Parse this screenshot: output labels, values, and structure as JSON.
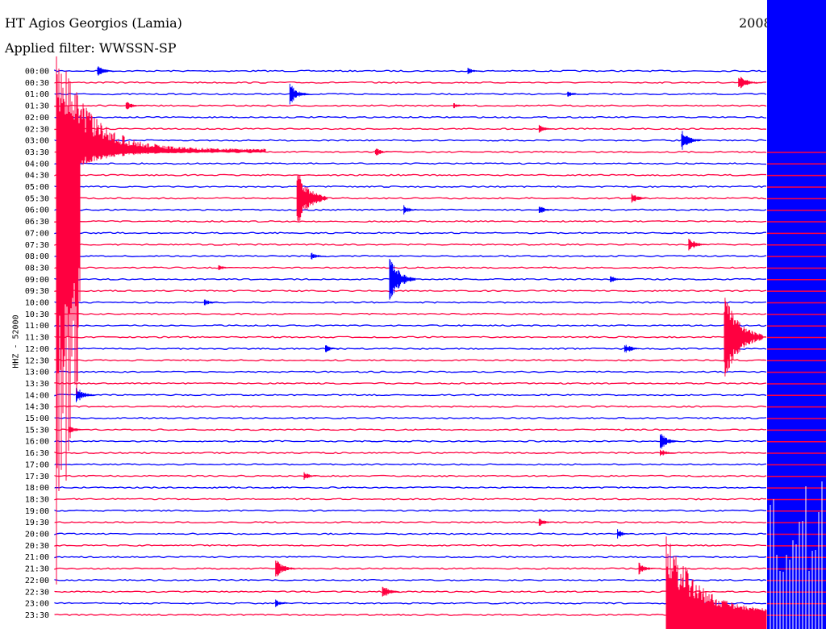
{
  "header": {
    "title": "HT Agios Georgios (Lamia)",
    "filter": "Applied filter: WWSSN-SP",
    "date": "2008"
  },
  "station_code": "HHZ - 52000",
  "colors": {
    "trace_a": "#0000ff",
    "trace_b": "#ff0040",
    "label": "#000000"
  },
  "chart_data": {
    "type": "line",
    "title": "HT Agios Georgios (Lamia)",
    "subtitle": "Applied filter: WWSSN-SP",
    "ylabel": "HHZ - 52000",
    "grid": false,
    "row_labels": [
      "00:00",
      "00:30",
      "01:00",
      "01:30",
      "02:00",
      "02:30",
      "03:00",
      "03:30",
      "04:00",
      "04:30",
      "05:00",
      "05:30",
      "06:00",
      "06:30",
      "07:00",
      "07:30",
      "08:00",
      "08:30",
      "09:00",
      "09:30",
      "10:00",
      "10:30",
      "11:00",
      "11:30",
      "12:00",
      "12:30",
      "13:00",
      "13:30",
      "14:00",
      "14:30",
      "15:00",
      "15:30",
      "16:00",
      "16:30",
      "17:00",
      "17:30",
      "18:00",
      "18:30",
      "19:00",
      "19:30",
      "20:00",
      "20:30",
      "21:00",
      "21:30",
      "22:00",
      "22:30",
      "23:00",
      "23:30"
    ],
    "events": [
      {
        "row": 0,
        "t": 0.06,
        "amp": 8,
        "color": "a"
      },
      {
        "row": 0,
        "t": 0.58,
        "amp": 5,
        "color": "a"
      },
      {
        "row": 1,
        "t": 0.96,
        "amp": 12,
        "color": "b"
      },
      {
        "row": 2,
        "t": 0.33,
        "amp": 14,
        "color": "a"
      },
      {
        "row": 2,
        "t": 0.72,
        "amp": 4,
        "color": "a"
      },
      {
        "row": 3,
        "t": 0.1,
        "amp": 6,
        "color": "b"
      },
      {
        "row": 3,
        "t": 0.56,
        "amp": 4,
        "color": "b"
      },
      {
        "row": 5,
        "t": 0.68,
        "amp": 6,
        "color": "b"
      },
      {
        "row": 6,
        "t": 0.88,
        "amp": 14,
        "color": "a"
      },
      {
        "row": 7,
        "t": 0.45,
        "amp": 6,
        "color": "b"
      },
      {
        "row": 11,
        "t": 0.34,
        "amp": 40,
        "color": "b"
      },
      {
        "row": 11,
        "t": 0.81,
        "amp": 8,
        "color": "b"
      },
      {
        "row": 12,
        "t": 0.49,
        "amp": 6,
        "color": "a"
      },
      {
        "row": 12,
        "t": 0.68,
        "amp": 6,
        "color": "a"
      },
      {
        "row": 15,
        "t": 0.89,
        "amp": 10,
        "color": "b"
      },
      {
        "row": 16,
        "t": 0.36,
        "amp": 5,
        "color": "a"
      },
      {
        "row": 17,
        "t": 0.23,
        "amp": 4,
        "color": "b"
      },
      {
        "row": 18,
        "t": 0.47,
        "amp": 30,
        "color": "a"
      },
      {
        "row": 18,
        "t": 0.78,
        "amp": 5,
        "color": "a"
      },
      {
        "row": 20,
        "t": 0.21,
        "amp": 5,
        "color": "a"
      },
      {
        "row": 23,
        "t": 0.94,
        "amp": 60,
        "color": "b"
      },
      {
        "row": 24,
        "t": 0.38,
        "amp": 5,
        "color": "a"
      },
      {
        "row": 24,
        "t": 0.8,
        "amp": 8,
        "color": "a"
      },
      {
        "row": 28,
        "t": 0.03,
        "amp": 12,
        "color": "a"
      },
      {
        "row": 31,
        "t": 0.02,
        "amp": 6,
        "color": "b"
      },
      {
        "row": 32,
        "t": 0.85,
        "amp": 12,
        "color": "a"
      },
      {
        "row": 33,
        "t": 0.85,
        "amp": 6,
        "color": "b"
      },
      {
        "row": 35,
        "t": 0.35,
        "amp": 5,
        "color": "b"
      },
      {
        "row": 39,
        "t": 0.68,
        "amp": 6,
        "color": "b"
      },
      {
        "row": 40,
        "t": 0.79,
        "amp": 6,
        "color": "a"
      },
      {
        "row": 43,
        "t": 0.31,
        "amp": 14,
        "color": "b"
      },
      {
        "row": 43,
        "t": 0.82,
        "amp": 8,
        "color": "b"
      },
      {
        "row": 45,
        "t": 0.46,
        "amp": 10,
        "color": "b"
      },
      {
        "row": 46,
        "t": 0.31,
        "amp": 5,
        "color": "a"
      }
    ]
  }
}
